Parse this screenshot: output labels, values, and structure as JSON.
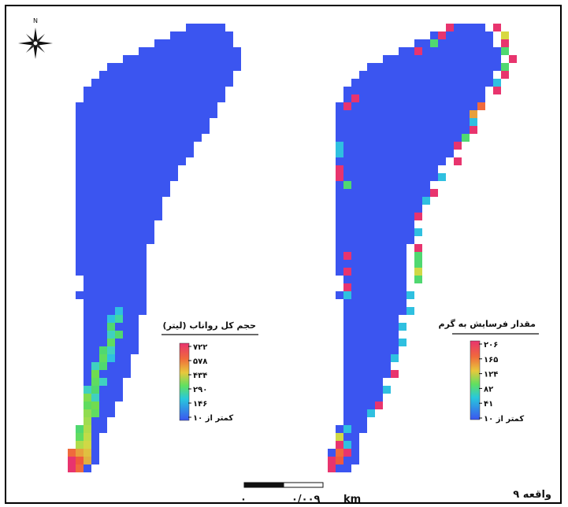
{
  "north_label": "N",
  "event_label": "واقعه ۹",
  "scale_bar": {
    "start_label": "۰",
    "end_label": "۰/۰۰۹",
    "unit": "km"
  },
  "colors": {
    "low": "#3b55f0",
    "ramp": [
      "#e8346e",
      "#f05a3c",
      "#e6a03c",
      "#c8dc3c",
      "#50dc64",
      "#28c8dc",
      "#3b55f0"
    ]
  },
  "maps": [
    {
      "id": "runoff",
      "legend_title": "حجم کل رواناب (لیتر)",
      "legend_labels": [
        "۷۲۲",
        "۵۷۸",
        "۴۳۴",
        "۲۹۰",
        "۱۴۶",
        "کمتر از ۱۰"
      ]
    },
    {
      "id": "erosion",
      "legend_title": "مقدار فرسایش به گرم",
      "legend_labels": [
        "۲۰۶",
        "۱۶۵",
        "۱۲۴",
        "۸۲",
        "۴۱",
        "کمتر از ۱۰"
      ]
    }
  ]
}
